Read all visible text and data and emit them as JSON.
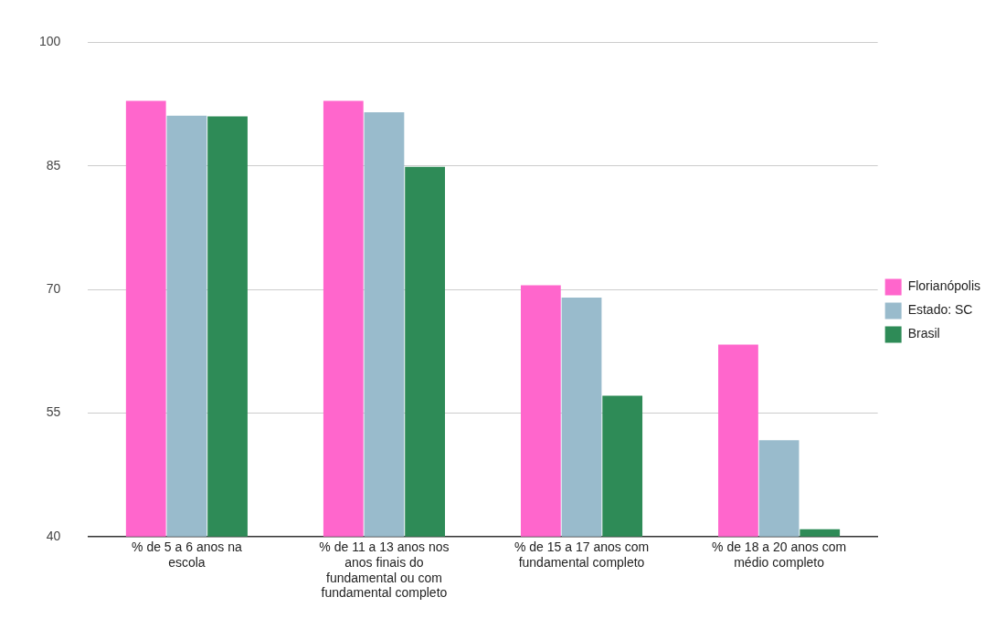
{
  "chart_data": {
    "type": "bar",
    "categories": [
      "% de 5 a 6 anos na escola",
      "% de 11 a 13 anos nos anos finais do fundamental ou com fundamental completo",
      "% de 15 a 17 anos com fundamental completo",
      "% de 18 a 20 anos com médio completo"
    ],
    "series": [
      {
        "name": "Florianópolis",
        "color": "#ff66cc",
        "values": [
          92.9,
          92.9,
          70.5,
          63.3
        ]
      },
      {
        "name": "Estado: SC",
        "color": "#99bbcc",
        "values": [
          91.1,
          91.5,
          69.0,
          51.7
        ]
      },
      {
        "name": "Brasil",
        "color": "#2e8b57",
        "values": [
          91.0,
          84.9,
          57.1,
          40.9
        ]
      }
    ],
    "ylim": [
      40,
      100
    ],
    "yticks": [
      40,
      55,
      70,
      85,
      100
    ],
    "grid": "y",
    "legend": "right"
  }
}
